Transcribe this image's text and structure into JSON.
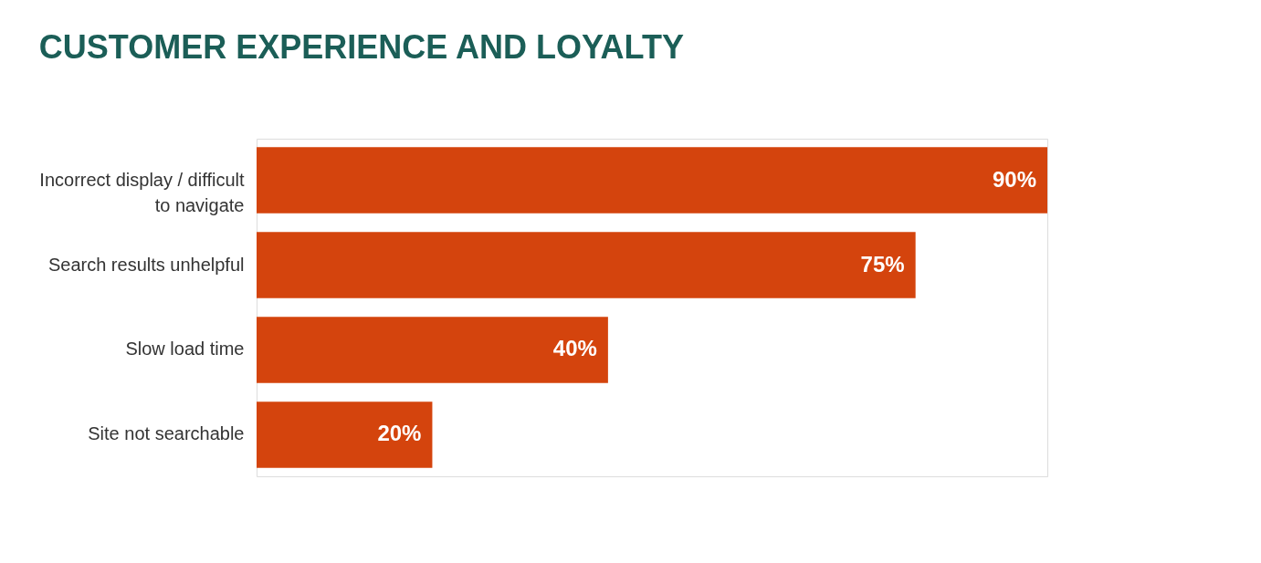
{
  "chart_data": {
    "type": "bar",
    "orientation": "horizontal",
    "title": "CUSTOMER EXPERIENCE AND LOYALTY",
    "categories": [
      "Incorrect display / difficult to navigate",
      "Search results unhelpful",
      "Slow load time",
      "Site not searchable"
    ],
    "values": [
      90,
      75,
      40,
      20
    ],
    "value_labels": [
      "90%",
      "75%",
      "40%",
      "20%"
    ],
    "color": "#d4440d",
    "grid": false
  }
}
